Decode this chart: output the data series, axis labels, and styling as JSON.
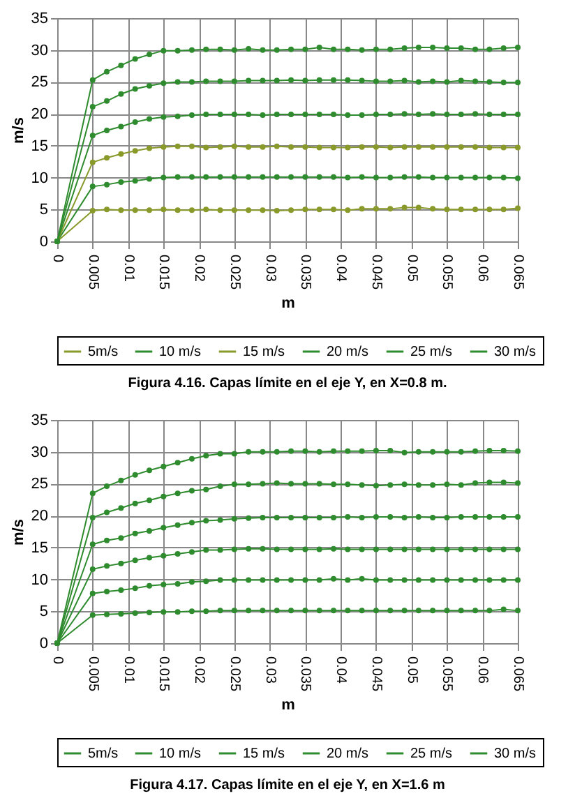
{
  "chart_data": [
    {
      "type": "line",
      "title": "Figura 4.16. Capas límite en el eje Y, en X=0.8 m.",
      "xlabel": "m",
      "ylabel": "m/s",
      "x": [
        0,
        0.005,
        0.007,
        0.009,
        0.011,
        0.013,
        0.015,
        0.017,
        0.019,
        0.021,
        0.023,
        0.025,
        0.027,
        0.029,
        0.031,
        0.033,
        0.035,
        0.037,
        0.039,
        0.041,
        0.043,
        0.045,
        0.047,
        0.049,
        0.051,
        0.053,
        0.055,
        0.057,
        0.059,
        0.061,
        0.063,
        0.065
      ],
      "xlim": [
        0,
        0.065
      ],
      "xticks": [
        0,
        0.005,
        0.01,
        0.015,
        0.02,
        0.025,
        0.03,
        0.035,
        0.04,
        0.045,
        0.05,
        0.055,
        0.06,
        0.065
      ],
      "ylim": [
        0,
        35
      ],
      "yticks": [
        0,
        5,
        10,
        15,
        20,
        25,
        30,
        35
      ],
      "grid": true,
      "legend": "bottom",
      "marker": "circle",
      "line_style": "solid",
      "series": [
        {
          "name": "5m/s",
          "color": "#8a9a2a",
          "values": [
            0,
            4.8,
            5.0,
            4.9,
            4.9,
            4.9,
            5.0,
            4.9,
            4.9,
            5.0,
            4.9,
            4.9,
            4.9,
            4.9,
            4.8,
            4.9,
            5.0,
            5.0,
            5.0,
            4.9,
            5.1,
            5.1,
            5.1,
            5.3,
            5.3,
            5.1,
            5.0,
            5.0,
            5.0,
            5.0,
            5.0,
            5.2
          ]
        },
        {
          "name": "10 m/s",
          "color": "#2e8b2e",
          "values": [
            0,
            8.6,
            8.9,
            9.3,
            9.5,
            9.8,
            10.0,
            10.1,
            10.1,
            10.1,
            10.1,
            10.1,
            10.1,
            10.1,
            10.1,
            10.1,
            10.1,
            10.1,
            10.1,
            10.0,
            10.1,
            10.0,
            10.0,
            10.1,
            10.1,
            10.0,
            10.0,
            10.0,
            10.0,
            10.0,
            10.0,
            9.9
          ]
        },
        {
          "name": "15 m/s",
          "color": "#8a9a2a",
          "values": [
            0,
            12.4,
            13.1,
            13.7,
            14.2,
            14.6,
            14.8,
            14.9,
            14.9,
            14.7,
            14.8,
            14.9,
            14.8,
            14.8,
            14.9,
            14.8,
            14.8,
            14.7,
            14.7,
            14.7,
            14.8,
            14.8,
            14.7,
            14.8,
            14.8,
            14.8,
            14.8,
            14.8,
            14.8,
            14.7,
            14.7,
            14.7
          ]
        },
        {
          "name": "20 m/s",
          "color": "#2e8b2e",
          "values": [
            0,
            16.6,
            17.4,
            18.0,
            18.7,
            19.2,
            19.5,
            19.6,
            19.8,
            19.9,
            19.9,
            19.9,
            19.9,
            19.8,
            19.9,
            19.9,
            19.9,
            19.9,
            19.9,
            19.8,
            19.8,
            19.9,
            19.9,
            20.0,
            19.9,
            20.0,
            19.9,
            19.9,
            20.0,
            19.9,
            19.9,
            19.9
          ]
        },
        {
          "name": "25 m/s",
          "color": "#2e8b2e",
          "values": [
            0,
            21.1,
            22.0,
            23.1,
            23.9,
            24.4,
            24.8,
            25.0,
            25.0,
            25.1,
            25.1,
            25.1,
            25.2,
            25.2,
            25.2,
            25.3,
            25.2,
            25.3,
            25.3,
            25.3,
            25.2,
            25.1,
            25.1,
            25.2,
            25.0,
            25.1,
            25.0,
            25.2,
            25.1,
            25.0,
            24.9,
            24.9
          ]
        },
        {
          "name": "30 m/s",
          "color": "#2e8b2e",
          "values": [
            0,
            25.3,
            26.6,
            27.6,
            28.6,
            29.3,
            29.9,
            29.9,
            30.0,
            30.1,
            30.1,
            30.0,
            30.2,
            30.0,
            30.0,
            30.1,
            30.1,
            30.4,
            30.1,
            30.1,
            30.0,
            30.1,
            30.1,
            30.3,
            30.4,
            30.4,
            30.3,
            30.3,
            30.1,
            30.1,
            30.3,
            30.4
          ]
        }
      ]
    },
    {
      "type": "line",
      "title": "Figura 4.17. Capas límite en el eje Y, en X=1.6 m",
      "xlabel": "m",
      "ylabel": "m/s",
      "x": [
        0,
        0.005,
        0.007,
        0.009,
        0.011,
        0.013,
        0.015,
        0.017,
        0.019,
        0.021,
        0.023,
        0.025,
        0.027,
        0.029,
        0.031,
        0.033,
        0.035,
        0.037,
        0.039,
        0.041,
        0.043,
        0.045,
        0.047,
        0.049,
        0.051,
        0.053,
        0.055,
        0.057,
        0.059,
        0.061,
        0.063,
        0.065
      ],
      "xlim": [
        0,
        0.065
      ],
      "xticks": [
        0,
        0.005,
        0.01,
        0.015,
        0.02,
        0.025,
        0.03,
        0.035,
        0.04,
        0.045,
        0.05,
        0.055,
        0.06,
        0.065
      ],
      "ylim": [
        0,
        35
      ],
      "yticks": [
        0,
        5,
        10,
        15,
        20,
        25,
        30,
        35
      ],
      "grid": true,
      "legend": "bottom",
      "marker": "circle",
      "line_style": "solid",
      "series": [
        {
          "name": "5m/s",
          "color": "#2e8b2e",
          "values": [
            0,
            4.4,
            4.5,
            4.6,
            4.7,
            4.8,
            4.9,
            4.9,
            5.0,
            5.0,
            5.1,
            5.1,
            5.1,
            5.1,
            5.1,
            5.1,
            5.1,
            5.1,
            5.1,
            5.1,
            5.1,
            5.1,
            5.1,
            5.1,
            5.1,
            5.1,
            5.1,
            5.1,
            5.1,
            5.1,
            5.3,
            5.1
          ]
        },
        {
          "name": "10 m/s",
          "color": "#2e8b2e",
          "values": [
            0,
            7.8,
            8.1,
            8.3,
            8.6,
            9.0,
            9.2,
            9.3,
            9.6,
            9.7,
            9.9,
            9.9,
            9.9,
            9.9,
            9.9,
            9.9,
            9.9,
            9.9,
            10.1,
            9.9,
            10.1,
            9.9,
            9.9,
            9.9,
            9.9,
            9.9,
            9.9,
            9.9,
            9.9,
            9.9,
            9.9,
            9.9
          ]
        },
        {
          "name": "15 m/s",
          "color": "#2e8b2e",
          "values": [
            0,
            11.6,
            12.1,
            12.5,
            13.0,
            13.4,
            13.7,
            14.0,
            14.3,
            14.6,
            14.6,
            14.7,
            14.8,
            14.8,
            14.7,
            14.7,
            14.7,
            14.7,
            14.8,
            14.7,
            14.7,
            14.7,
            14.7,
            14.7,
            14.7,
            14.7,
            14.7,
            14.7,
            14.7,
            14.7,
            14.7,
            14.7
          ]
        },
        {
          "name": "20 m/s",
          "color": "#2e8b2e",
          "values": [
            0,
            15.5,
            16.1,
            16.5,
            17.2,
            17.6,
            18.1,
            18.5,
            18.9,
            19.2,
            19.3,
            19.5,
            19.6,
            19.7,
            19.7,
            19.7,
            19.7,
            19.7,
            19.7,
            19.8,
            19.7,
            19.8,
            19.8,
            19.7,
            19.8,
            19.7,
            19.7,
            19.8,
            19.8,
            19.8,
            19.8,
            19.8
          ]
        },
        {
          "name": "25 m/s",
          "color": "#2e8b2e",
          "values": [
            0,
            19.7,
            20.5,
            21.2,
            21.9,
            22.4,
            23.0,
            23.5,
            23.9,
            24.1,
            24.6,
            24.9,
            24.9,
            25.0,
            25.1,
            25.0,
            25.0,
            25.0,
            24.9,
            24.9,
            24.8,
            24.7,
            24.8,
            24.9,
            24.8,
            24.8,
            24.9,
            24.8,
            25.1,
            25.2,
            25.2,
            25.1
          ]
        },
        {
          "name": "30 m/s",
          "color": "#2e8b2e",
          "values": [
            0,
            23.5,
            24.6,
            25.5,
            26.4,
            27.1,
            27.7,
            28.3,
            28.9,
            29.4,
            29.7,
            29.7,
            30.0,
            30.0,
            30.0,
            30.1,
            30.1,
            30.0,
            30.1,
            30.1,
            30.1,
            30.2,
            30.2,
            29.9,
            30.0,
            30.0,
            30.0,
            30.0,
            30.1,
            30.2,
            30.2,
            30.1
          ]
        }
      ]
    }
  ]
}
